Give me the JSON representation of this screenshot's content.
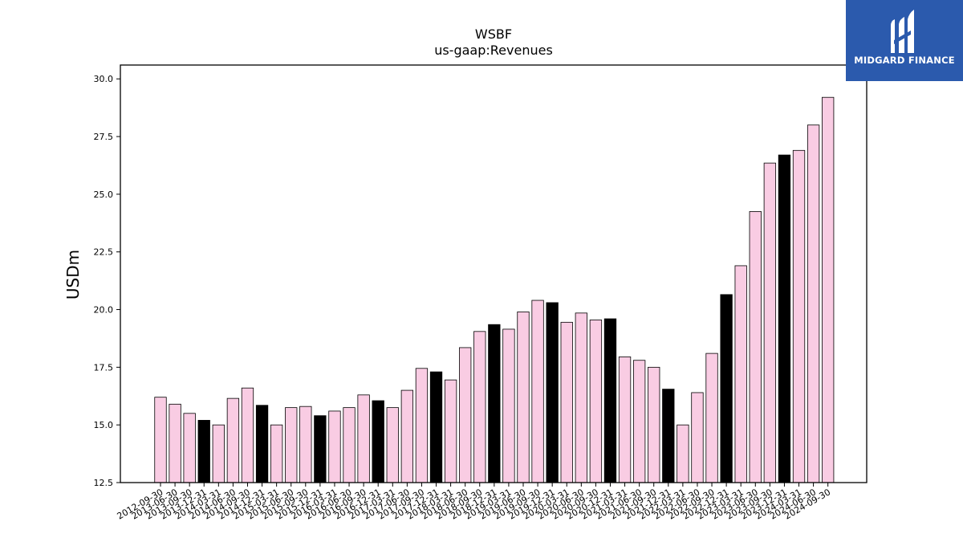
{
  "brand": {
    "name": "MIDGARD FINANCE",
    "logo_icon": "midgard-mark-icon",
    "bg_color": "#2b5aad"
  },
  "chart_data": {
    "type": "bar",
    "title": "WSBF",
    "subtitle": "us-gaap:Revenues",
    "xlabel": "",
    "ylabel": "USDm",
    "ylim": [
      12.5,
      30.6
    ],
    "yticks": [
      "12.5",
      "15.0",
      "17.5",
      "20.0",
      "22.5",
      "25.0",
      "27.5",
      "30.0"
    ],
    "grid": false,
    "colors": {
      "quarter": "#f9cce3",
      "year_end": "#000000",
      "edge": "#000000"
    },
    "categories": [
      "2012-09-30",
      "2013-06-30",
      "2013-09-30",
      "2013-12-31",
      "2014-03-31",
      "2014-06-30",
      "2014-09-30",
      "2014-12-31",
      "2015-03-31",
      "2015-06-30",
      "2015-09-30",
      "2015-12-31",
      "2016-03-31",
      "2016-06-30",
      "2016-09-30",
      "2016-12-31",
      "2017-03-31",
      "2017-06-30",
      "2017-09-30",
      "2017-12-31",
      "2018-03-31",
      "2018-06-30",
      "2018-09-30",
      "2018-12-31",
      "2019-03-31",
      "2019-06-30",
      "2019-09-30",
      "2019-12-31",
      "2020-03-31",
      "2020-06-30",
      "2020-09-30",
      "2020-12-31",
      "2021-03-31",
      "2021-06-30",
      "2021-09-30",
      "2021-12-31",
      "2022-03-31",
      "2022-06-30",
      "2022-09-30",
      "2022-12-31",
      "2023-03-31",
      "2023-06-30",
      "2023-09-30",
      "2023-12-31",
      "2024-03-31",
      "2024-06-30",
      "2024-09-30"
    ],
    "values": [
      16.2,
      15.9,
      15.5,
      15.2,
      15.0,
      16.15,
      16.6,
      15.85,
      15.0,
      15.75,
      15.8,
      15.4,
      15.6,
      15.75,
      16.3,
      16.05,
      15.75,
      16.5,
      17.45,
      17.3,
      16.95,
      18.35,
      19.05,
      19.35,
      19.15,
      19.9,
      20.4,
      20.3,
      19.45,
      19.85,
      19.55,
      19.6,
      17.95,
      17.8,
      17.5,
      16.55,
      15.0,
      16.4,
      18.1,
      20.65,
      21.9,
      24.25,
      26.35,
      26.7,
      26.9,
      28.0,
      29.2
    ],
    "highlight": [
      false,
      false,
      false,
      true,
      false,
      false,
      false,
      true,
      false,
      false,
      false,
      true,
      false,
      false,
      false,
      true,
      false,
      false,
      false,
      true,
      false,
      false,
      false,
      true,
      false,
      false,
      false,
      true,
      false,
      false,
      false,
      true,
      false,
      false,
      false,
      true,
      false,
      false,
      false,
      true,
      false,
      false,
      false,
      true,
      false,
      false,
      false
    ]
  }
}
